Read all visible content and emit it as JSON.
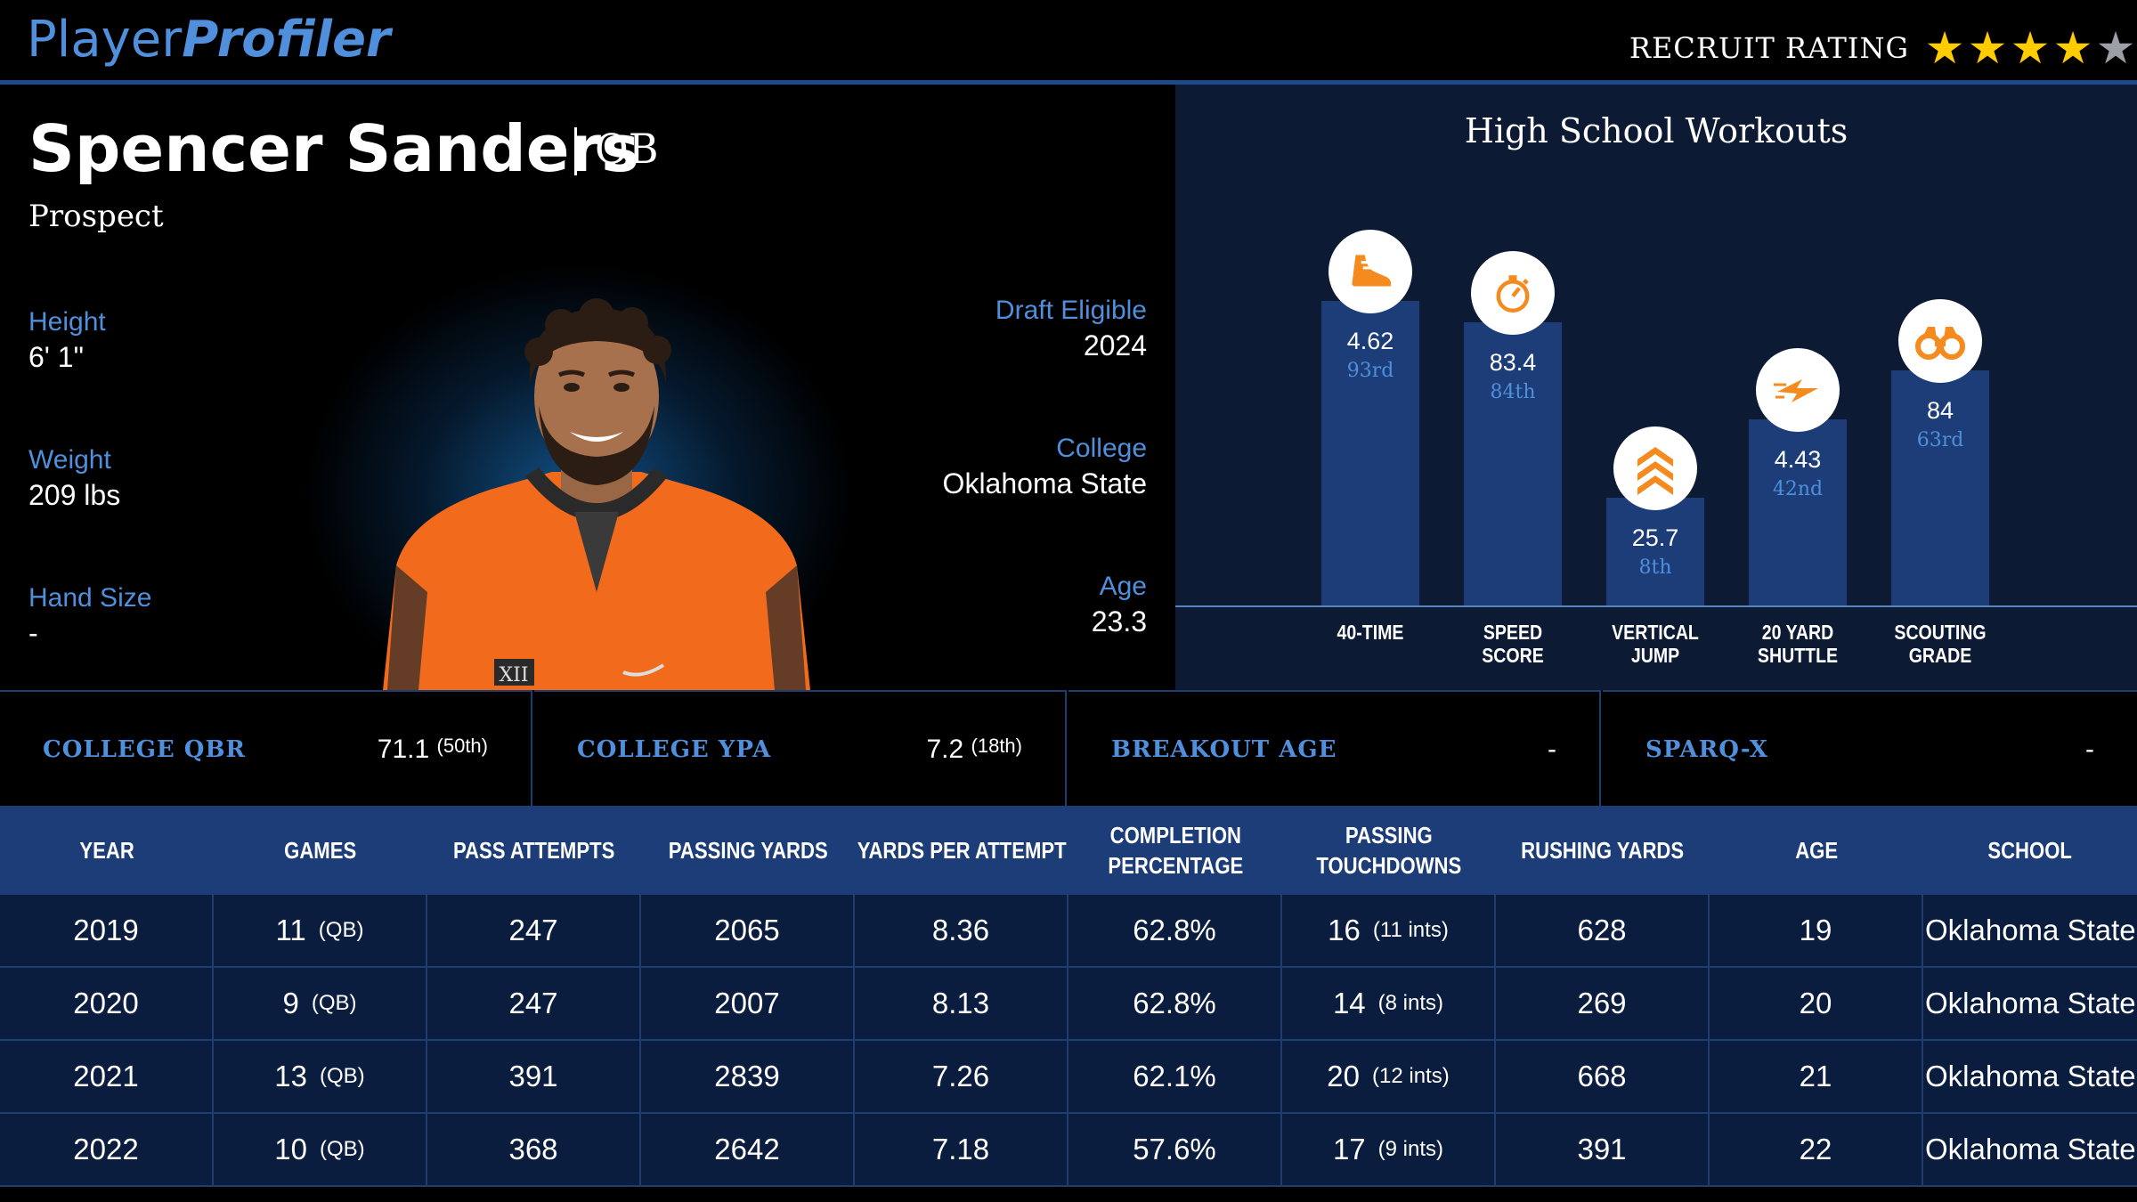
{
  "header": {
    "logo_part1": "Player",
    "logo_part2": "Profiler",
    "recruit_label": "RECRUIT RATING",
    "recruit_stars": 4,
    "recruit_max": 5,
    "star_filled": "★",
    "star_empty": "★"
  },
  "player": {
    "name": "Spencer Sanders",
    "position": "QB",
    "status": "Prospect",
    "height_label": "Height",
    "height": "6' 1\"",
    "weight_label": "Weight",
    "weight": "209 lbs",
    "hand_label": "Hand Size",
    "hand": "-",
    "draft_label": "Draft Eligible",
    "draft": "2024",
    "college_label": "College",
    "college": "Oklahoma State",
    "age_label": "Age",
    "age": "23.3"
  },
  "workouts": {
    "title": "High School Workouts",
    "accent_color": "#f58a1f",
    "items": [
      {
        "label1": "40-TIME",
        "label2": "",
        "value": "4.62",
        "rank": "93rd",
        "percentile": 93,
        "icon": "shoe-icon"
      },
      {
        "label1": "SPEED",
        "label2": "SCORE",
        "value": "83.4",
        "rank": "84th",
        "percentile": 84,
        "icon": "stopwatch-icon"
      },
      {
        "label1": "VERTICAL",
        "label2": "JUMP",
        "value": "25.7",
        "rank": "8th",
        "percentile": 8,
        "icon": "chevrons-up-icon"
      },
      {
        "label1": "20 YARD",
        "label2": "SHUTTLE",
        "value": "4.43",
        "rank": "42nd",
        "percentile": 42,
        "icon": "lightning-icon"
      },
      {
        "label1": "SCOUTING",
        "label2": "GRADE",
        "value": "84",
        "rank": "63rd",
        "percentile": 63,
        "icon": "binoculars-icon"
      }
    ]
  },
  "stats": [
    {
      "label": "COLLEGE QBR",
      "value": "71.1",
      "rank": "(50th)"
    },
    {
      "label": "COLLEGE YPA",
      "value": "7.2",
      "rank": "(18th)"
    },
    {
      "label": "BREAKOUT AGE",
      "value": "-",
      "rank": ""
    },
    {
      "label": "SPARQ-X",
      "value": "-",
      "rank": ""
    }
  ],
  "table": {
    "headers": [
      [
        "YEAR",
        ""
      ],
      [
        "GAMES",
        ""
      ],
      [
        "PASS ATTEMPTS",
        ""
      ],
      [
        "PASSING YARDS",
        ""
      ],
      [
        "YARDS PER ATTEMPT",
        ""
      ],
      [
        "COMPLETION",
        "PERCENTAGE"
      ],
      [
        "PASSING",
        "TOUCHDOWNS"
      ],
      [
        "RUSHING YARDS",
        ""
      ],
      [
        "AGE",
        ""
      ],
      [
        "SCHOOL",
        ""
      ]
    ],
    "rows": [
      {
        "year": "2019",
        "games": "11",
        "games_pos": "(QB)",
        "att": "247",
        "yds": "2065",
        "ypa": "8.36",
        "cmp": "62.8%",
        "td": "16",
        "ints": "(11 ints)",
        "rush": "628",
        "age": "19",
        "school": "Oklahoma State"
      },
      {
        "year": "2020",
        "games": "9",
        "games_pos": "(QB)",
        "att": "247",
        "yds": "2007",
        "ypa": "8.13",
        "cmp": "62.8%",
        "td": "14",
        "ints": "(8 ints)",
        "rush": "269",
        "age": "20",
        "school": "Oklahoma State"
      },
      {
        "year": "2021",
        "games": "13",
        "games_pos": "(QB)",
        "att": "391",
        "yds": "2839",
        "ypa": "7.26",
        "cmp": "62.1%",
        "td": "20",
        "ints": "(12 ints)",
        "rush": "668",
        "age": "21",
        "school": "Oklahoma State"
      },
      {
        "year": "2022",
        "games": "10",
        "games_pos": "(QB)",
        "att": "368",
        "yds": "2642",
        "ypa": "7.18",
        "cmp": "57.6%",
        "td": "17",
        "ints": "(9 ints)",
        "rush": "391",
        "age": "22",
        "school": "Oklahoma State"
      }
    ]
  }
}
